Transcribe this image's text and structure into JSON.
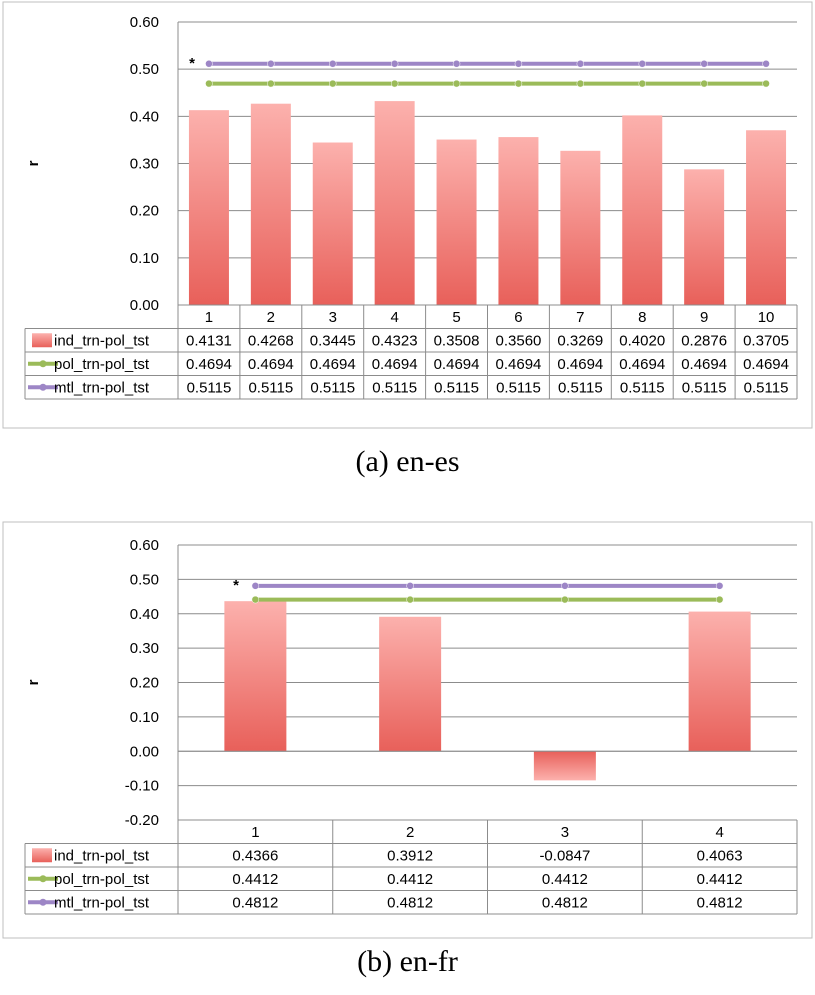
{
  "chart_data": [
    {
      "type": "bar",
      "caption": "(a) en-es",
      "ylabel": "r",
      "ylim": [
        0,
        0.6
      ],
      "yticks": [
        "0.00",
        "0.10",
        "0.20",
        "0.30",
        "0.40",
        "0.50",
        "0.60"
      ],
      "categories": [
        "1",
        "2",
        "3",
        "4",
        "5",
        "6",
        "7",
        "8",
        "9",
        "10"
      ],
      "legend_placement": "data-table",
      "grid": true,
      "annotation": "*",
      "series": [
        {
          "name": "ind_trn-pol_tst",
          "kind": "bar",
          "color": "#e8605a",
          "values": [
            0.4131,
            0.4268,
            0.3445,
            0.4323,
            0.3508,
            0.356,
            0.3269,
            0.402,
            0.2876,
            0.3705
          ],
          "labels": [
            "0.4131",
            "0.4268",
            "0.3445",
            "0.4323",
            "0.3508",
            "0.3560",
            "0.3269",
            "0.4020",
            "0.2876",
            "0.3705"
          ]
        },
        {
          "name": "pol_trn-pol_tst",
          "kind": "line",
          "color": "#9bbb59",
          "values": [
            0.4694,
            0.4694,
            0.4694,
            0.4694,
            0.4694,
            0.4694,
            0.4694,
            0.4694,
            0.4694,
            0.4694
          ],
          "labels": [
            "0.4694",
            "0.4694",
            "0.4694",
            "0.4694",
            "0.4694",
            "0.4694",
            "0.4694",
            "0.4694",
            "0.4694",
            "0.4694"
          ]
        },
        {
          "name": "mtl_trn-pol_tst",
          "kind": "line",
          "color": "#9d86c6",
          "values": [
            0.5115,
            0.5115,
            0.5115,
            0.5115,
            0.5115,
            0.5115,
            0.5115,
            0.5115,
            0.5115,
            0.5115
          ],
          "labels": [
            "0.5115",
            "0.5115",
            "0.5115",
            "0.5115",
            "0.5115",
            "0.5115",
            "0.5115",
            "0.5115",
            "0.5115",
            "0.5115"
          ]
        }
      ]
    },
    {
      "type": "bar",
      "caption": "(b) en-fr",
      "ylabel": "r",
      "ylim": [
        -0.2,
        0.6
      ],
      "yticks": [
        "-0.20",
        "-0.10",
        "0.00",
        "0.10",
        "0.20",
        "0.30",
        "0.40",
        "0.50",
        "0.60"
      ],
      "categories": [
        "1",
        "2",
        "3",
        "4"
      ],
      "legend_placement": "data-table",
      "grid": true,
      "annotation": "*",
      "series": [
        {
          "name": "ind_trn-pol_tst",
          "kind": "bar",
          "color": "#e8605a",
          "values": [
            0.4366,
            0.3912,
            -0.0847,
            0.4063
          ],
          "labels": [
            "0.4366",
            "0.3912",
            "-0.0847",
            "0.4063"
          ]
        },
        {
          "name": "pol_trn-pol_tst",
          "kind": "line",
          "color": "#9bbb59",
          "values": [
            0.4412,
            0.4412,
            0.4412,
            0.4412
          ],
          "labels": [
            "0.4412",
            "0.4412",
            "0.4412",
            "0.4412"
          ]
        },
        {
          "name": "mtl_trn-pol_tst",
          "kind": "line",
          "color": "#9d86c6",
          "values": [
            0.4812,
            0.4812,
            0.4812,
            0.4812
          ],
          "labels": [
            "0.4812",
            "0.4812",
            "0.4812",
            "0.4812"
          ]
        }
      ]
    }
  ]
}
